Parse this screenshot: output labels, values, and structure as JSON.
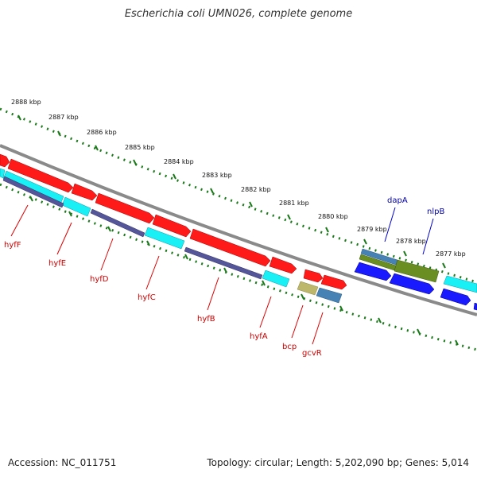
{
  "title": "Escherichia coli UMN026, complete genome",
  "footer": {
    "accession": "Accession: NC_011751",
    "topology": "Topology: circular; Length: 5,202,090 bp; Genes: 5,014"
  },
  "ticks": [
    "2888 kbp",
    "2887 kbp",
    "2886 kbp",
    "2885 kbp",
    "2884 kbp",
    "2883 kbp",
    "2882 kbp",
    "2881 kbp",
    "2880 kbp",
    "2879 kbp",
    "2878 kbp",
    "2877 kbp"
  ],
  "genes_red": [
    "hyfF",
    "hyfE",
    "hyfD",
    "hyfC",
    "hyfB",
    "hyfA",
    "bcp",
    "gcvR"
  ],
  "genes_blue": [
    "dapA",
    "nlpB"
  ],
  "colors": {
    "backbone": "#888888",
    "tick": "#1a7a1a",
    "red_gene": "#ff1a1a",
    "cyan_gene": "#19f0f5",
    "navy_gene": "#555599",
    "blue_gene": "#1a1aff",
    "olive_gene": "#6b8e23",
    "steel_gene": "#4682b4",
    "khaki_gene": "#bdb76b",
    "red_label": "#cc0000",
    "blue_label": "#0000aa"
  }
}
